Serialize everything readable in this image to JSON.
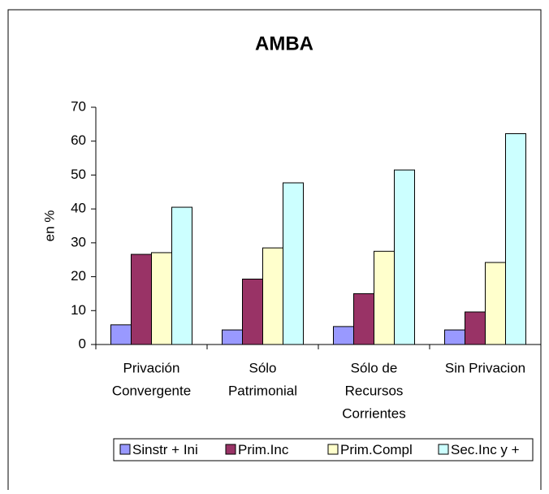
{
  "chart_data": {
    "type": "bar",
    "title": "AMBA",
    "y_label": "en %",
    "categories": [
      [
        "Privación",
        "Convergente"
      ],
      [
        "Sólo",
        "Patrimonial"
      ],
      [
        "Sólo de",
        "Recursos",
        "Corrientes"
      ],
      [
        "Sin Privacion"
      ]
    ],
    "series": [
      {
        "name": "Sinstr + Ini",
        "color": "#9999ff",
        "values": [
          5.8,
          4.3,
          5.3,
          4.3
        ]
      },
      {
        "name": "Prim.Inc",
        "color": "#993366",
        "values": [
          26.6,
          19.3,
          15.0,
          9.6
        ]
      },
      {
        "name": "Prim.Compl",
        "color": "#ffffcc",
        "values": [
          27.1,
          28.5,
          27.5,
          24.2
        ]
      },
      {
        "name": "Sec.Inc y +",
        "color": "#ccffff",
        "values": [
          40.5,
          47.7,
          51.5,
          62.2
        ]
      }
    ],
    "ylim": [
      0,
      70
    ],
    "yticks": [
      0,
      10,
      20,
      30,
      40,
      50,
      60,
      70
    ],
    "legend": "bottom"
  }
}
